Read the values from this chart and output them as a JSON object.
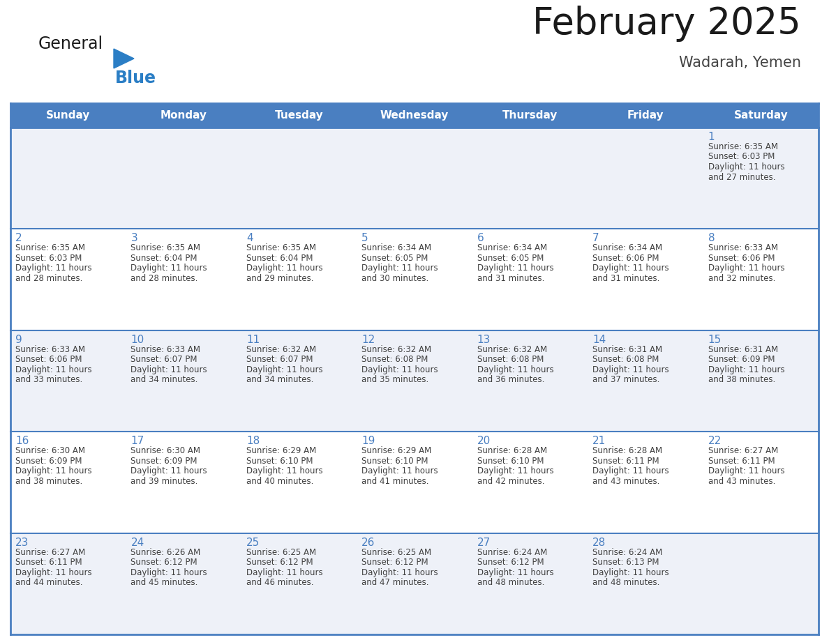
{
  "title": "February 2025",
  "subtitle": "Wadarah, Yemen",
  "days_of_week": [
    "Sunday",
    "Monday",
    "Tuesday",
    "Wednesday",
    "Thursday",
    "Friday",
    "Saturday"
  ],
  "header_color": "#4a7fc1",
  "header_text_color": "#FFFFFF",
  "grid_line_color": "#4a7fc1",
  "day_num_color": "#4a7fc1",
  "cell_text_color": "#404040",
  "alt_row_color": "#eef1f8",
  "white_row_color": "#FFFFFF",
  "bg_color": "#FFFFFF",
  "logo_general_color": "#1a1a1a",
  "logo_blue_color": "#2B7EC5",
  "calendar": [
    [
      null,
      null,
      null,
      null,
      null,
      null,
      {
        "day": 1,
        "sunrise": "6:35 AM",
        "sunset": "6:03 PM",
        "daylight": "11 hours and 27 minutes."
      }
    ],
    [
      {
        "day": 2,
        "sunrise": "6:35 AM",
        "sunset": "6:03 PM",
        "daylight": "11 hours and 28 minutes."
      },
      {
        "day": 3,
        "sunrise": "6:35 AM",
        "sunset": "6:04 PM",
        "daylight": "11 hours and 28 minutes."
      },
      {
        "day": 4,
        "sunrise": "6:35 AM",
        "sunset": "6:04 PM",
        "daylight": "11 hours and 29 minutes."
      },
      {
        "day": 5,
        "sunrise": "6:34 AM",
        "sunset": "6:05 PM",
        "daylight": "11 hours and 30 minutes."
      },
      {
        "day": 6,
        "sunrise": "6:34 AM",
        "sunset": "6:05 PM",
        "daylight": "11 hours and 31 minutes."
      },
      {
        "day": 7,
        "sunrise": "6:34 AM",
        "sunset": "6:06 PM",
        "daylight": "11 hours and 31 minutes."
      },
      {
        "day": 8,
        "sunrise": "6:33 AM",
        "sunset": "6:06 PM",
        "daylight": "11 hours and 32 minutes."
      }
    ],
    [
      {
        "day": 9,
        "sunrise": "6:33 AM",
        "sunset": "6:06 PM",
        "daylight": "11 hours and 33 minutes."
      },
      {
        "day": 10,
        "sunrise": "6:33 AM",
        "sunset": "6:07 PM",
        "daylight": "11 hours and 34 minutes."
      },
      {
        "day": 11,
        "sunrise": "6:32 AM",
        "sunset": "6:07 PM",
        "daylight": "11 hours and 34 minutes."
      },
      {
        "day": 12,
        "sunrise": "6:32 AM",
        "sunset": "6:08 PM",
        "daylight": "11 hours and 35 minutes."
      },
      {
        "day": 13,
        "sunrise": "6:32 AM",
        "sunset": "6:08 PM",
        "daylight": "11 hours and 36 minutes."
      },
      {
        "day": 14,
        "sunrise": "6:31 AM",
        "sunset": "6:08 PM",
        "daylight": "11 hours and 37 minutes."
      },
      {
        "day": 15,
        "sunrise": "6:31 AM",
        "sunset": "6:09 PM",
        "daylight": "11 hours and 38 minutes."
      }
    ],
    [
      {
        "day": 16,
        "sunrise": "6:30 AM",
        "sunset": "6:09 PM",
        "daylight": "11 hours and 38 minutes."
      },
      {
        "day": 17,
        "sunrise": "6:30 AM",
        "sunset": "6:09 PM",
        "daylight": "11 hours and 39 minutes."
      },
      {
        "day": 18,
        "sunrise": "6:29 AM",
        "sunset": "6:10 PM",
        "daylight": "11 hours and 40 minutes."
      },
      {
        "day": 19,
        "sunrise": "6:29 AM",
        "sunset": "6:10 PM",
        "daylight": "11 hours and 41 minutes."
      },
      {
        "day": 20,
        "sunrise": "6:28 AM",
        "sunset": "6:10 PM",
        "daylight": "11 hours and 42 minutes."
      },
      {
        "day": 21,
        "sunrise": "6:28 AM",
        "sunset": "6:11 PM",
        "daylight": "11 hours and 43 minutes."
      },
      {
        "day": 22,
        "sunrise": "6:27 AM",
        "sunset": "6:11 PM",
        "daylight": "11 hours and 43 minutes."
      }
    ],
    [
      {
        "day": 23,
        "sunrise": "6:27 AM",
        "sunset": "6:11 PM",
        "daylight": "11 hours and 44 minutes."
      },
      {
        "day": 24,
        "sunrise": "6:26 AM",
        "sunset": "6:12 PM",
        "daylight": "11 hours and 45 minutes."
      },
      {
        "day": 25,
        "sunrise": "6:25 AM",
        "sunset": "6:12 PM",
        "daylight": "11 hours and 46 minutes."
      },
      {
        "day": 26,
        "sunrise": "6:25 AM",
        "sunset": "6:12 PM",
        "daylight": "11 hours and 47 minutes."
      },
      {
        "day": 27,
        "sunrise": "6:24 AM",
        "sunset": "6:12 PM",
        "daylight": "11 hours and 48 minutes."
      },
      {
        "day": 28,
        "sunrise": "6:24 AM",
        "sunset": "6:13 PM",
        "daylight": "11 hours and 48 minutes."
      },
      null
    ]
  ]
}
